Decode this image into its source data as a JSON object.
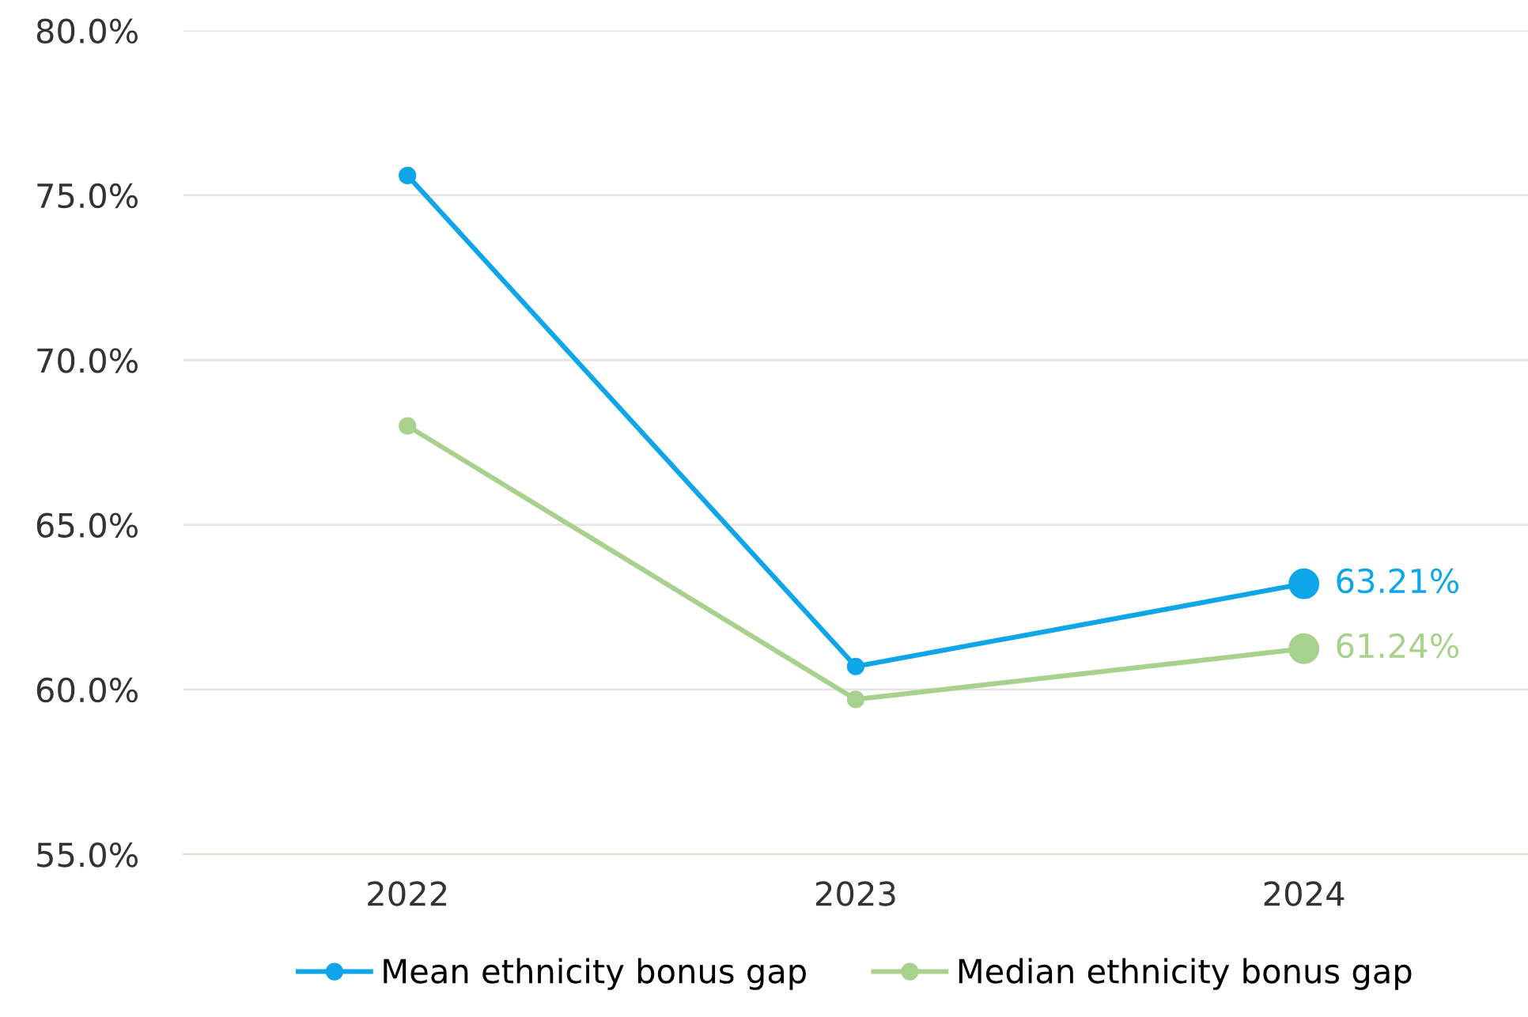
{
  "chart_data": {
    "type": "line",
    "categories": [
      "2022",
      "2023",
      "2024"
    ],
    "series": [
      {
        "name": "Mean ethnicity bonus gap",
        "color": "#0ea5e9",
        "values": [
          75.6,
          60.7,
          63.21
        ],
        "value_labels": [
          null,
          null,
          "63.21%"
        ]
      },
      {
        "name": "Median ethnicity bonus gap",
        "color": "#a9d18e",
        "values": [
          68.0,
          59.7,
          61.24
        ],
        "value_labels": [
          null,
          null,
          "61.24%"
        ]
      }
    ],
    "ylim": [
      55,
      80
    ],
    "yticks": [
      {
        "value": 55,
        "label": "55.0%"
      },
      {
        "value": 60,
        "label": "60.0%"
      },
      {
        "value": 65,
        "label": "65.0%"
      },
      {
        "value": 70,
        "label": "70.0%"
      },
      {
        "value": 75,
        "label": "75.0%"
      },
      {
        "value": 80,
        "label": "80.0%"
      }
    ],
    "grid": "y",
    "legend": "bottom",
    "marker": "circle",
    "line_style": "solid"
  }
}
